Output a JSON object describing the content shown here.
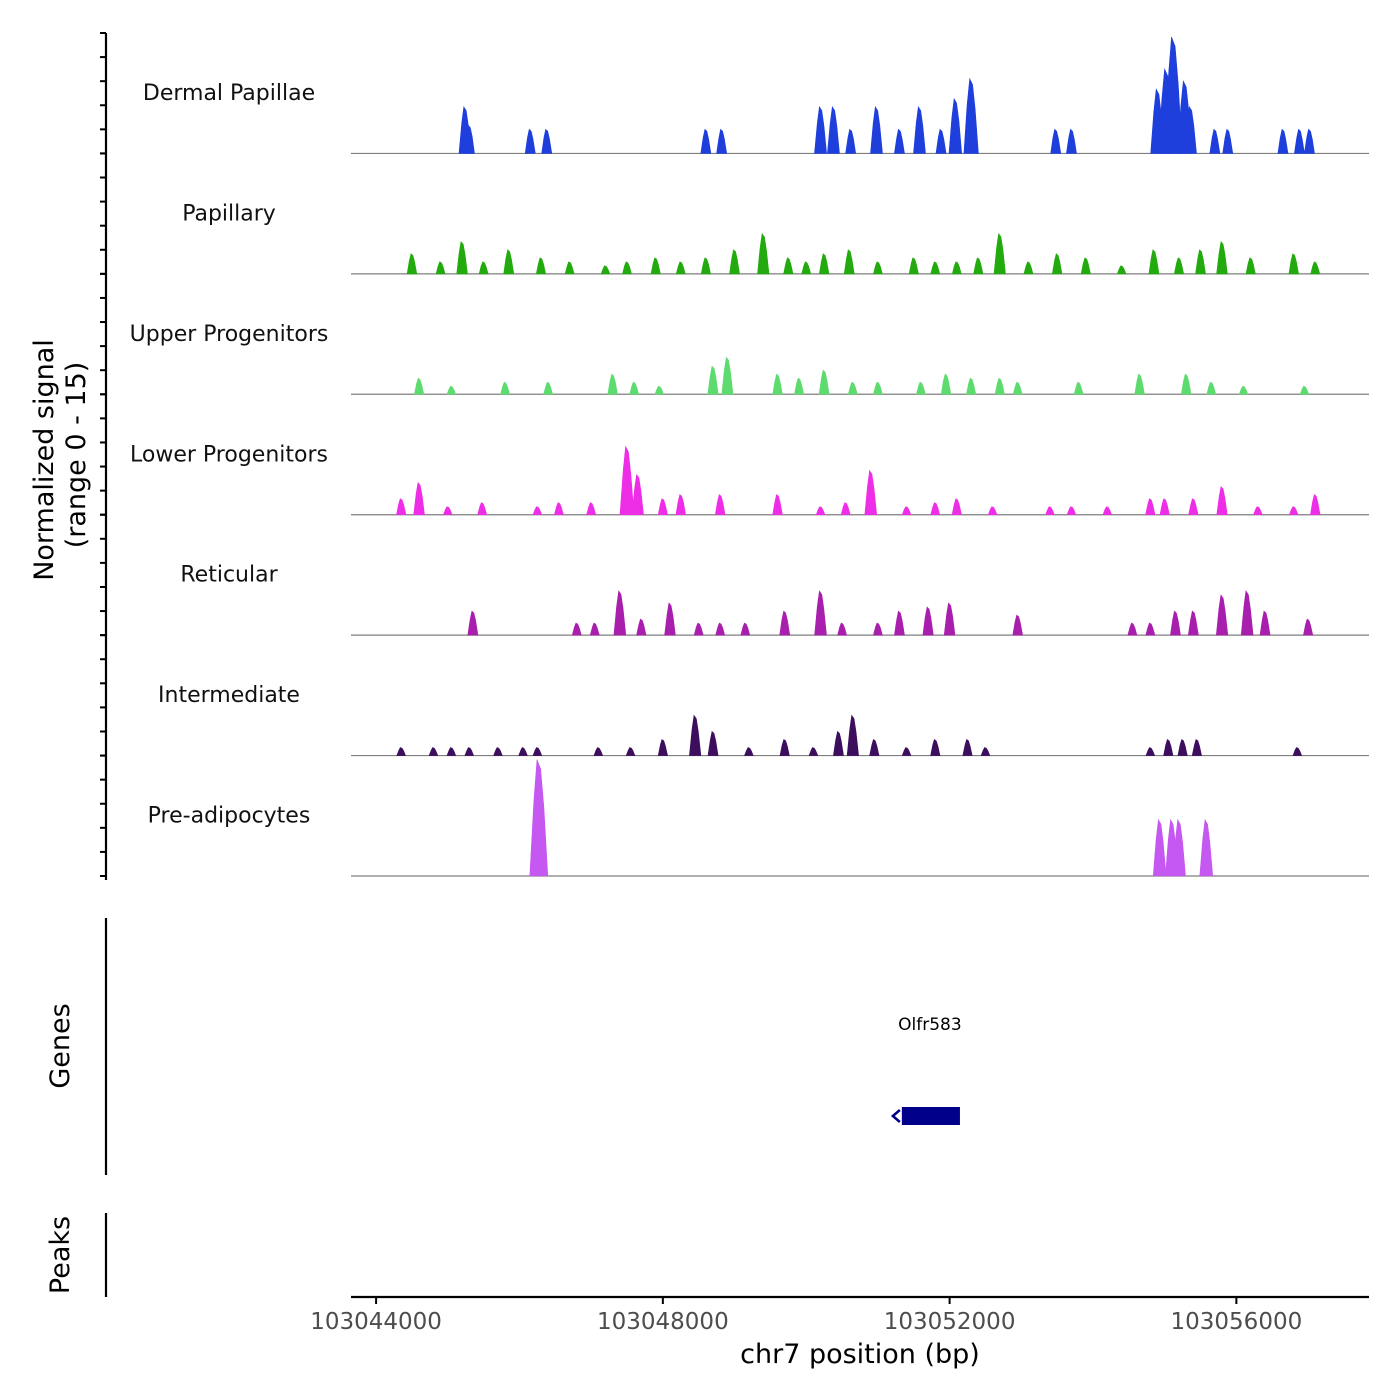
{
  "chart_data": {
    "type": "area",
    "title": "",
    "chromosome": "chr7",
    "xlabel": "chr7 position (bp)",
    "ylabel": "Normalized signal",
    "ylabel_sub": "(range 0 - 15)",
    "xlim": [
      103043650,
      103057850
    ],
    "ylim": [
      0,
      15
    ],
    "x_ticks": [
      103044000,
      103048000,
      103052000,
      103056000
    ],
    "x_tick_labels": [
      "103044000",
      "103048000",
      "103052000",
      "103056000"
    ],
    "tracks": [
      {
        "name": "Dermal Papillae",
        "color": "#1e3fdc",
        "peaks": [
          [
            103045240,
            5.8
          ],
          [
            103045300,
            3.5
          ],
          [
            103046150,
            3.0
          ],
          [
            103046380,
            3.0
          ],
          [
            103048600,
            3.0
          ],
          [
            103048820,
            3.0
          ],
          [
            103050200,
            5.8
          ],
          [
            103050380,
            5.8
          ],
          [
            103050620,
            3.0
          ],
          [
            103050980,
            5.8
          ],
          [
            103051300,
            3.0
          ],
          [
            103051580,
            5.8
          ],
          [
            103051880,
            3.0
          ],
          [
            103052080,
            6.8
          ],
          [
            103052300,
            9.3
          ],
          [
            103053480,
            3.0
          ],
          [
            103053700,
            3.0
          ],
          [
            103054900,
            8.0
          ],
          [
            103055020,
            10.5
          ],
          [
            103055120,
            14.5
          ],
          [
            103055280,
            9.0
          ],
          [
            103055360,
            5.8
          ],
          [
            103055700,
            3.0
          ],
          [
            103055880,
            3.0
          ],
          [
            103056650,
            3.0
          ],
          [
            103056880,
            3.0
          ],
          [
            103057020,
            3.0
          ]
        ]
      },
      {
        "name": "Papillary",
        "color": "#22aa0e",
        "peaks": [
          [
            103044500,
            2.5
          ],
          [
            103044900,
            1.5
          ],
          [
            103045200,
            4.0
          ],
          [
            103045500,
            1.5
          ],
          [
            103045850,
            3.0
          ],
          [
            103046300,
            2.0
          ],
          [
            103046700,
            1.5
          ],
          [
            103047200,
            1.0
          ],
          [
            103047500,
            1.5
          ],
          [
            103047900,
            2.0
          ],
          [
            103048250,
            1.5
          ],
          [
            103048600,
            2.0
          ],
          [
            103049000,
            3.0
          ],
          [
            103049400,
            5.0
          ],
          [
            103049750,
            2.0
          ],
          [
            103050000,
            1.5
          ],
          [
            103050250,
            2.5
          ],
          [
            103050600,
            3.0
          ],
          [
            103051000,
            1.5
          ],
          [
            103051500,
            2.0
          ],
          [
            103051800,
            1.5
          ],
          [
            103052100,
            1.5
          ],
          [
            103052400,
            2.0
          ],
          [
            103052700,
            5.0
          ],
          [
            103053100,
            1.5
          ],
          [
            103053500,
            2.5
          ],
          [
            103053900,
            2.0
          ],
          [
            103054400,
            1.0
          ],
          [
            103054850,
            3.0
          ],
          [
            103055200,
            2.0
          ],
          [
            103055500,
            3.0
          ],
          [
            103055800,
            4.0
          ],
          [
            103056200,
            2.0
          ],
          [
            103056800,
            2.5
          ],
          [
            103057100,
            1.5
          ]
        ]
      },
      {
        "name": "Upper Progenitors",
        "color": "#5edb6e",
        "peaks": [
          [
            103044600,
            2.0
          ],
          [
            103045050,
            1.0
          ],
          [
            103045800,
            1.5
          ],
          [
            103046400,
            1.5
          ],
          [
            103047300,
            2.5
          ],
          [
            103047600,
            1.5
          ],
          [
            103047950,
            1.0
          ],
          [
            103048700,
            3.5
          ],
          [
            103048900,
            4.6
          ],
          [
            103049600,
            2.5
          ],
          [
            103049900,
            2.0
          ],
          [
            103050250,
            3.0
          ],
          [
            103050650,
            1.5
          ],
          [
            103051000,
            1.5
          ],
          [
            103051600,
            1.5
          ],
          [
            103051950,
            2.5
          ],
          [
            103052300,
            2.0
          ],
          [
            103052700,
            2.0
          ],
          [
            103052950,
            1.5
          ],
          [
            103053800,
            1.5
          ],
          [
            103054650,
            2.5
          ],
          [
            103055300,
            2.5
          ],
          [
            103055650,
            1.5
          ],
          [
            103056100,
            1.0
          ],
          [
            103056950,
            1.0
          ]
        ]
      },
      {
        "name": "Lower Progenitors",
        "color": "#ee2ee6",
        "peaks": [
          [
            103044350,
            2.0
          ],
          [
            103044600,
            4.0
          ],
          [
            103045000,
            1.0
          ],
          [
            103045480,
            1.5
          ],
          [
            103046250,
            1.0
          ],
          [
            103046550,
            1.5
          ],
          [
            103047000,
            1.5
          ],
          [
            103047500,
            8.5
          ],
          [
            103047650,
            5.0
          ],
          [
            103048000,
            2.0
          ],
          [
            103048250,
            2.5
          ],
          [
            103048800,
            2.5
          ],
          [
            103049600,
            2.5
          ],
          [
            103050200,
            1.0
          ],
          [
            103050550,
            1.5
          ],
          [
            103050900,
            5.5
          ],
          [
            103051400,
            1.0
          ],
          [
            103051800,
            1.5
          ],
          [
            103052100,
            2.0
          ],
          [
            103052600,
            1.0
          ],
          [
            103053400,
            1.0
          ],
          [
            103053700,
            1.0
          ],
          [
            103054200,
            1.0
          ],
          [
            103054800,
            2.0
          ],
          [
            103055000,
            2.0
          ],
          [
            103055400,
            2.0
          ],
          [
            103055800,
            3.5
          ],
          [
            103056300,
            1.0
          ],
          [
            103056800,
            1.0
          ],
          [
            103057100,
            2.5
          ]
        ]
      },
      {
        "name": "Reticular",
        "color": "#a91fad",
        "peaks": [
          [
            103045350,
            3.0
          ],
          [
            103046800,
            1.5
          ],
          [
            103047050,
            1.5
          ],
          [
            103047400,
            5.5
          ],
          [
            103047700,
            2.0
          ],
          [
            103048100,
            4.0
          ],
          [
            103048500,
            1.5
          ],
          [
            103048800,
            1.5
          ],
          [
            103049150,
            1.5
          ],
          [
            103049700,
            3.0
          ],
          [
            103050200,
            5.5
          ],
          [
            103050500,
            1.5
          ],
          [
            103051000,
            1.5
          ],
          [
            103051300,
            3.0
          ],
          [
            103051700,
            3.5
          ],
          [
            103052000,
            4.0
          ],
          [
            103052950,
            2.5
          ],
          [
            103054550,
            1.5
          ],
          [
            103054800,
            1.5
          ],
          [
            103055150,
            3.0
          ],
          [
            103055400,
            3.0
          ],
          [
            103055800,
            5.0
          ],
          [
            103056150,
            5.5
          ],
          [
            103056400,
            3.0
          ],
          [
            103057000,
            2.0
          ]
        ]
      },
      {
        "name": "Intermediate",
        "color": "#3d0e5e",
        "peaks": [
          [
            103044350,
            1.0
          ],
          [
            103044800,
            1.0
          ],
          [
            103045050,
            1.0
          ],
          [
            103045300,
            1.0
          ],
          [
            103045700,
            1.0
          ],
          [
            103046050,
            1.0
          ],
          [
            103046250,
            1.0
          ],
          [
            103047100,
            1.0
          ],
          [
            103047550,
            1.0
          ],
          [
            103048000,
            2.0
          ],
          [
            103048450,
            5.0
          ],
          [
            103048700,
            3.0
          ],
          [
            103049200,
            1.0
          ],
          [
            103049700,
            2.0
          ],
          [
            103050100,
            1.0
          ],
          [
            103050450,
            3.0
          ],
          [
            103050650,
            5.0
          ],
          [
            103050950,
            2.0
          ],
          [
            103051400,
            1.0
          ],
          [
            103051800,
            2.0
          ],
          [
            103052250,
            2.0
          ],
          [
            103052500,
            1.0
          ],
          [
            103054800,
            1.0
          ],
          [
            103055050,
            2.0
          ],
          [
            103055250,
            2.0
          ],
          [
            103055450,
            2.0
          ],
          [
            103056850,
            1.0
          ]
        ]
      },
      {
        "name": "Pre-adipocytes",
        "color": "#c558f0",
        "peaks": [
          [
            103046270,
            14.5
          ],
          [
            103054930,
            7.0
          ],
          [
            103055100,
            7.0
          ],
          [
            103055200,
            7.0
          ],
          [
            103055580,
            7.0
          ]
        ]
      }
    ],
    "genes": [
      {
        "name": "Olfr583",
        "start": 103051250,
        "end": 103052200,
        "strand": "-",
        "color": "#00008b"
      }
    ],
    "panel_labels": {
      "genes": "Genes",
      "peaks": "Peaks"
    }
  }
}
